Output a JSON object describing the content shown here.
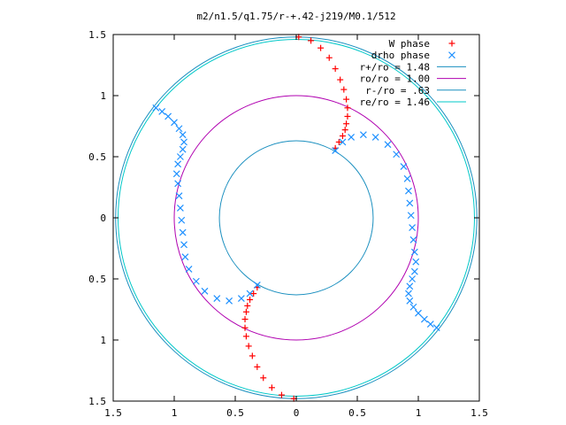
{
  "chart_data": {
    "type": "scatter",
    "title": "m2/n1.5/q1.75/r-+.42-j219/M0.1/512",
    "xlabel": "",
    "ylabel": "",
    "xlim": [
      -1.5,
      1.5
    ],
    "ylim": [
      -1.5,
      1.5
    ],
    "x_ticks": [
      {
        "value": -1.5,
        "label": "1.5"
      },
      {
        "value": -1,
        "label": "1"
      },
      {
        "value": -0.5,
        "label": "0.5"
      },
      {
        "value": 0,
        "label": "0"
      },
      {
        "value": 0.5,
        "label": "0.5"
      },
      {
        "value": 1,
        "label": "1"
      },
      {
        "value": 1.5,
        "label": "1.5"
      }
    ],
    "y_ticks": [
      {
        "value": 1.5,
        "label": "1.5"
      },
      {
        "value": 1,
        "label": "1"
      },
      {
        "value": 0.5,
        "label": "0.5"
      },
      {
        "value": 0,
        "label": "0"
      },
      {
        "value": -0.5,
        "label": "0.5"
      },
      {
        "value": -1,
        "label": "1"
      },
      {
        "value": -1.5,
        "label": "1.5"
      }
    ],
    "legend_position": "top-right",
    "grid": false,
    "legend": [
      {
        "label": "W phase",
        "kind": "point",
        "marker": "plus",
        "color": "#ff0000"
      },
      {
        "label": "drho phase",
        "kind": "point",
        "marker": "cross",
        "color": "#1e90ff"
      },
      {
        "label": "r+/ro = 1.48",
        "kind": "line",
        "color": "#1a8fbf",
        "radius": 1.48
      },
      {
        "label": "ro/ro = 1.00",
        "kind": "line",
        "color": "#b000b0",
        "radius": 1.0
      },
      {
        "label": "r-/ro = .63",
        "kind": "line",
        "color": "#1a8fbf",
        "radius": 0.63
      },
      {
        "label": "re/ro = 1.46",
        "kind": "line",
        "color": "#00c8c8",
        "radius": 1.46
      }
    ],
    "series": [
      {
        "name": "W phase",
        "marker": "plus",
        "color": "#ff0000",
        "x": [
          0.02,
          0.12,
          0.2,
          0.27,
          0.32,
          0.36,
          0.39,
          0.41,
          0.42,
          0.42,
          0.41,
          0.4,
          0.38,
          0.35,
          0.32,
          -0.02,
          -0.12,
          -0.2,
          -0.27,
          -0.32,
          -0.36,
          -0.39,
          -0.41,
          -0.42,
          -0.42,
          -0.41,
          -0.4,
          -0.38,
          -0.35,
          -0.32
        ],
        "y": [
          1.48,
          1.45,
          1.39,
          1.31,
          1.22,
          1.13,
          1.05,
          0.97,
          0.9,
          0.83,
          0.77,
          0.72,
          0.67,
          0.62,
          0.57,
          -1.48,
          -1.45,
          -1.39,
          -1.31,
          -1.22,
          -1.13,
          -1.05,
          -0.97,
          -0.9,
          -0.83,
          -0.77,
          -0.72,
          -0.67,
          -0.62,
          -0.57
        ]
      },
      {
        "name": "drho phase",
        "marker": "cross",
        "color": "#1e90ff",
        "x": [
          0.32,
          0.38,
          0.45,
          0.55,
          0.65,
          0.75,
          0.82,
          0.88,
          0.91,
          0.92,
          0.93,
          0.94,
          0.95,
          0.96,
          0.97,
          0.98,
          0.97,
          0.95,
          0.93,
          0.92,
          0.93,
          0.96,
          1.0,
          1.05,
          1.1,
          1.15,
          -0.32,
          -0.38,
          -0.45,
          -0.55,
          -0.65,
          -0.75,
          -0.82,
          -0.88,
          -0.91,
          -0.92,
          -0.93,
          -0.94,
          -0.95,
          -0.96,
          -0.97,
          -0.98,
          -0.97,
          -0.95,
          -0.93,
          -0.92,
          -0.93,
          -0.96,
          -1.0,
          -1.05,
          -1.1,
          -1.15
        ],
        "y": [
          0.55,
          0.62,
          0.66,
          0.68,
          0.66,
          0.6,
          0.52,
          0.42,
          0.32,
          0.22,
          0.12,
          0.02,
          -0.08,
          -0.18,
          -0.28,
          -0.36,
          -0.44,
          -0.5,
          -0.56,
          -0.62,
          -0.68,
          -0.73,
          -0.78,
          -0.83,
          -0.87,
          -0.9,
          -0.55,
          -0.62,
          -0.66,
          -0.68,
          -0.66,
          -0.6,
          -0.52,
          -0.42,
          -0.32,
          -0.22,
          -0.12,
          -0.02,
          0.08,
          0.18,
          0.28,
          0.36,
          0.44,
          0.5,
          0.56,
          0.62,
          0.68,
          0.73,
          0.78,
          0.83,
          0.87,
          0.9
        ]
      }
    ]
  }
}
